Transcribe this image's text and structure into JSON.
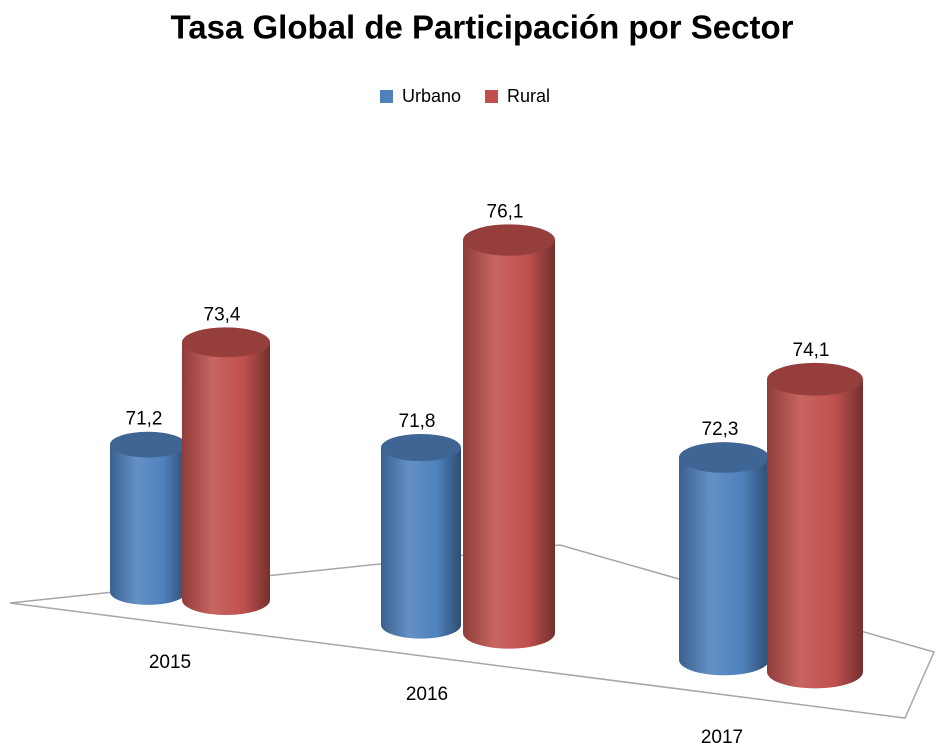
{
  "chart_data": {
    "type": "bar3d",
    "title": "Tasa Global de Participación por Sector",
    "categories": [
      "2015",
      "2016",
      "2017"
    ],
    "series": [
      {
        "name": "Urbano",
        "color": "#4f81bd",
        "values": [
          71.2,
          71.8,
          72.3
        ],
        "value_labels": [
          "71,2",
          "71,8",
          "72,3"
        ]
      },
      {
        "name": "Rural",
        "color": "#c0504d",
        "values": [
          73.4,
          76.1,
          74.1
        ],
        "value_labels": [
          "73,4",
          "76,1",
          "74,1"
        ]
      }
    ],
    "legend": "top"
  }
}
